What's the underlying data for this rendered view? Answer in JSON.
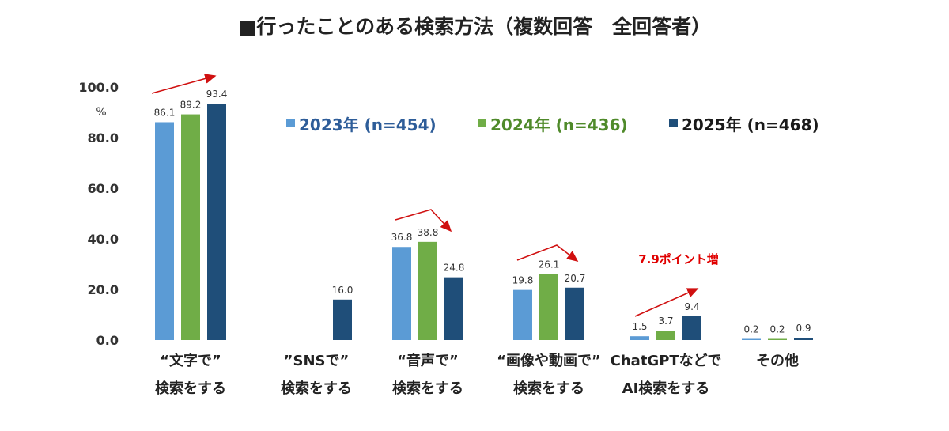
{
  "chart_data": {
    "type": "bar",
    "title": "■行ったことのある検索方法（複数回答　全回答者）",
    "ylabel": "%",
    "ylim": [
      0,
      100
    ],
    "yticks": [
      "0.0",
      "20.0",
      "40.0",
      "60.0",
      "80.0",
      "100.0"
    ],
    "grid": false,
    "legend_position": "top-right",
    "categories": [
      [
        "“文字で”",
        "検索をする"
      ],
      [
        "”SNSで”",
        "検索をする"
      ],
      [
        "“音声で”",
        "検索をする"
      ],
      [
        "“画像や動画で”",
        "検索をする"
      ],
      [
        "ChatGPTなどで",
        "AI検索をする"
      ],
      [
        "その他"
      ]
    ],
    "series": [
      {
        "name": "2023年 (n=454)",
        "color": "#5b9bd5",
        "values": [
          86.1,
          null,
          36.8,
          19.8,
          1.5,
          0.2
        ]
      },
      {
        "name": "2024年 (n=436)",
        "color": "#70ad47",
        "values": [
          89.2,
          null,
          38.8,
          26.1,
          3.7,
          0.2
        ]
      },
      {
        "name": "2025年 (n=468)",
        "color": "#1f4e79",
        "values": [
          93.4,
          16.0,
          24.8,
          20.7,
          9.4,
          0.9
        ]
      }
    ],
    "annotations": [
      {
        "text": "7.9ポイント増",
        "color": "#e00000"
      }
    ],
    "arrow_color": "#d01010"
  }
}
